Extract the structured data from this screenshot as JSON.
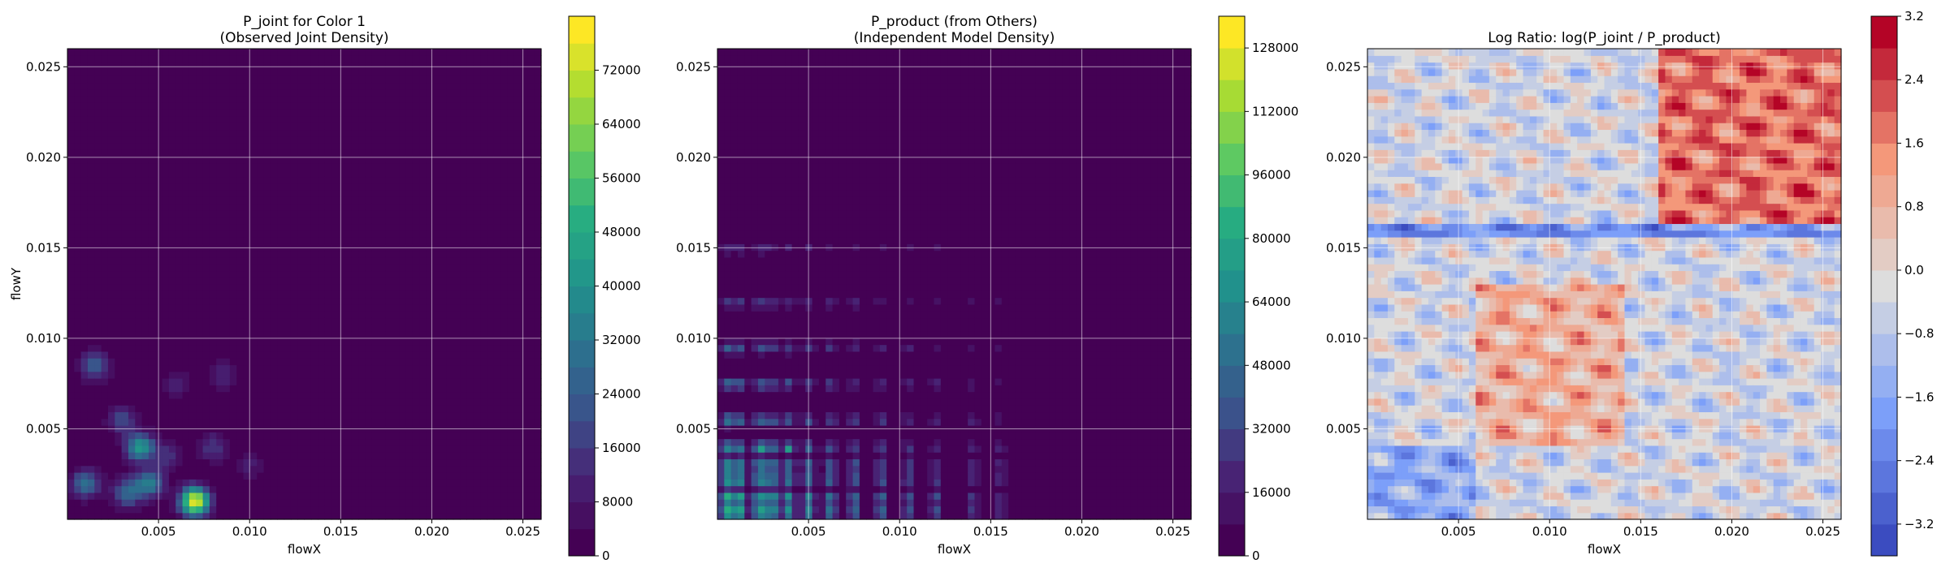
{
  "chart_data": [
    {
      "type": "heatmap",
      "title_line1": "P_joint for Color 1",
      "title_line2": "(Observed Joint Density)",
      "xlabel": "flowX",
      "ylabel": "flowY",
      "xlim": [
        0.0,
        0.026
      ],
      "ylim": [
        0.0,
        0.026
      ],
      "x_ticks": [
        "0.005",
        "0.010",
        "0.015",
        "0.020",
        "0.025"
      ],
      "y_ticks": [
        "0.005",
        "0.010",
        "0.015",
        "0.020",
        "0.025"
      ],
      "x_tick_values": [
        0.005,
        0.01,
        0.015,
        0.02,
        0.025
      ],
      "y_tick_values": [
        0.005,
        0.01,
        0.015,
        0.02,
        0.025
      ],
      "grid": true,
      "colormap": "viridis",
      "colorbar": {
        "min": 0,
        "max": 80000,
        "levels": 20,
        "ticks": [
          "0",
          "8000",
          "16000",
          "24000",
          "32000",
          "40000",
          "48000",
          "56000",
          "64000",
          "72000"
        ],
        "tick_values": [
          0,
          8000,
          16000,
          24000,
          32000,
          40000,
          48000,
          56000,
          64000,
          72000
        ]
      },
      "peaks": [
        {
          "x": 0.004,
          "y": 0.004,
          "value": 42000
        },
        {
          "x": 0.007,
          "y": 0.001,
          "value": 78000
        },
        {
          "x": 0.0015,
          "y": 0.0085,
          "value": 26000
        },
        {
          "x": 0.001,
          "y": 0.002,
          "value": 30000
        },
        {
          "x": 0.0033,
          "y": 0.0015,
          "value": 28000
        },
        {
          "x": 0.0045,
          "y": 0.002,
          "value": 34000
        },
        {
          "x": 0.003,
          "y": 0.0055,
          "value": 20000
        },
        {
          "x": 0.008,
          "y": 0.004,
          "value": 16000
        },
        {
          "x": 0.0055,
          "y": 0.0035,
          "value": 14000
        },
        {
          "x": 0.0085,
          "y": 0.008,
          "value": 12000
        },
        {
          "x": 0.01,
          "y": 0.003,
          "value": 9000
        },
        {
          "x": 0.006,
          "y": 0.0075,
          "value": 10000
        }
      ]
    },
    {
      "type": "heatmap",
      "title_line1": "P_product (from Others)",
      "title_line2": "(Independent Model Density)",
      "xlabel": "flowX",
      "ylabel": "",
      "xlim": [
        0.0,
        0.026
      ],
      "ylim": [
        0.0,
        0.026
      ],
      "x_ticks": [
        "0.005",
        "0.010",
        "0.015",
        "0.020",
        "0.025"
      ],
      "y_ticks": [
        "0.005",
        "0.010",
        "0.015",
        "0.020",
        "0.025"
      ],
      "x_tick_values": [
        0.005,
        0.01,
        0.015,
        0.02,
        0.025
      ],
      "y_tick_values": [
        0.005,
        0.01,
        0.015,
        0.02,
        0.025
      ],
      "grid": true,
      "colormap": "viridis",
      "colorbar": {
        "min": 0,
        "max": 136000,
        "levels": 17,
        "ticks": [
          "0",
          "16000",
          "32000",
          "48000",
          "64000",
          "80000",
          "96000",
          "112000",
          "128000"
        ],
        "tick_values": [
          0,
          16000,
          32000,
          48000,
          64000,
          80000,
          96000,
          112000,
          128000
        ]
      },
      "x_marginal_peaks": [
        0.0005,
        0.0012,
        0.0023,
        0.003,
        0.0039,
        0.005,
        0.0062,
        0.0075,
        0.009,
        0.0105,
        0.012,
        0.014,
        0.0155
      ],
      "y_marginal_peaks": [
        0.0004,
        0.0012,
        0.0022,
        0.003,
        0.004,
        0.0055,
        0.0075,
        0.0095,
        0.012,
        0.015
      ],
      "max_points": [
        {
          "x": 0.0023,
          "y": 0.004,
          "value": 134000
        },
        {
          "x": 0.0039,
          "y": 0.004,
          "value": 120000
        }
      ]
    },
    {
      "type": "heatmap",
      "title_line1": "Log Ratio: log(P_joint / P_product)",
      "xlabel": "flowX",
      "ylabel": "",
      "xlim": [
        0.0,
        0.026
      ],
      "ylim": [
        0.0,
        0.026
      ],
      "x_ticks": [
        "0.005",
        "0.010",
        "0.015",
        "0.020",
        "0.025"
      ],
      "y_ticks": [
        "0.005",
        "0.010",
        "0.015",
        "0.020",
        "0.025"
      ],
      "x_tick_values": [
        0.005,
        0.01,
        0.015,
        0.02,
        0.025
      ],
      "y_tick_values": [
        0.005,
        0.01,
        0.015,
        0.02,
        0.025
      ],
      "grid": true,
      "colormap": "coolwarm",
      "colorbar": {
        "min": -3.6,
        "max": 3.2,
        "levels": 17,
        "ticks": [
          "−3.2",
          "−2.4",
          "−1.6",
          "−0.8",
          "0.0",
          "0.8",
          "1.6",
          "2.4",
          "3.2"
        ],
        "tick_values": [
          -3.2,
          -2.4,
          -1.6,
          -0.8,
          0.0,
          0.8,
          1.6,
          2.4,
          3.2
        ]
      },
      "regions": [
        {
          "description_x": [
            0.016,
            0.026
          ],
          "description_y": [
            0.016,
            0.026
          ],
          "value": 2.4
        },
        {
          "description_x": [
            0.006,
            0.014
          ],
          "description_y": [
            0.004,
            0.013
          ],
          "value": 1.2
        },
        {
          "description_x": [
            0.0,
            0.006
          ],
          "description_y": [
            0.0,
            0.004
          ],
          "value": -1.8
        },
        {
          "description_x": [
            0.0,
            0.026
          ],
          "description_y": [
            0.0155,
            0.0165
          ],
          "value": -2.6
        }
      ]
    }
  ]
}
